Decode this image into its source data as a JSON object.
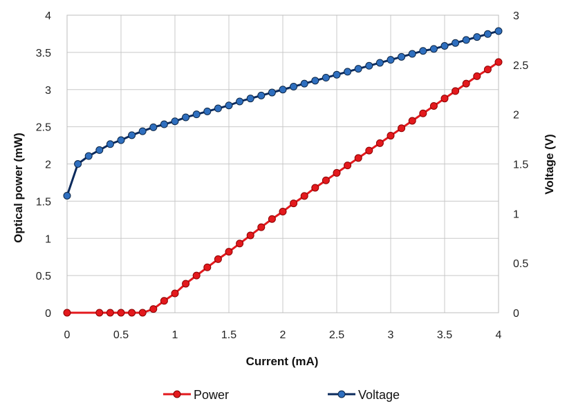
{
  "chart_data": {
    "type": "line",
    "title": "",
    "xlabel": "Current (mA)",
    "ylabel_left": "Optical power (mW)",
    "ylabel_right": "Voltage (V)",
    "xlim": [
      0,
      4
    ],
    "ylim_left": [
      0,
      4
    ],
    "ylim_right": [
      0,
      3
    ],
    "xticks": [
      "0",
      "0.5",
      "1",
      "1.5",
      "2",
      "2.5",
      "3",
      "3.5",
      "4"
    ],
    "yticks_left": [
      "0",
      "0.5",
      "1",
      "1.5",
      "2",
      "2.5",
      "3",
      "3.5",
      "4"
    ],
    "yticks_right": [
      "0",
      "0.5",
      "1",
      "1.5",
      "2",
      "2.5",
      "3"
    ],
    "grid": true,
    "legend_position": "bottom",
    "series": [
      {
        "name": "Power",
        "axis": "left",
        "color": "#e3191d",
        "x": [
          0,
          0.3,
          0.4,
          0.5,
          0.6,
          0.7,
          0.8,
          0.9,
          1.0,
          1.1,
          1.2,
          1.3,
          1.4,
          1.5,
          1.6,
          1.7,
          1.8,
          1.9,
          2.0,
          2.1,
          2.2,
          2.3,
          2.4,
          2.5,
          2.6,
          2.7,
          2.8,
          2.9,
          3.0,
          3.1,
          3.2,
          3.3,
          3.4,
          3.5,
          3.6,
          3.7,
          3.8,
          3.9,
          4.0
        ],
        "values": [
          0,
          0,
          0,
          0,
          0,
          0,
          0.05,
          0.16,
          0.26,
          0.39,
          0.5,
          0.61,
          0.72,
          0.82,
          0.93,
          1.04,
          1.15,
          1.26,
          1.36,
          1.47,
          1.57,
          1.68,
          1.78,
          1.88,
          1.98,
          2.08,
          2.18,
          2.28,
          2.38,
          2.48,
          2.58,
          2.68,
          2.78,
          2.88,
          2.98,
          3.08,
          3.18,
          3.27,
          3.37
        ]
      },
      {
        "name": "Voltage",
        "axis": "right",
        "color": "#1f4e8c",
        "x": [
          0,
          0.1,
          0.2,
          0.3,
          0.4,
          0.5,
          0.6,
          0.7,
          0.8,
          0.9,
          1.0,
          1.1,
          1.2,
          1.3,
          1.4,
          1.5,
          1.6,
          1.7,
          1.8,
          1.9,
          2.0,
          2.1,
          2.2,
          2.3,
          2.4,
          2.5,
          2.6,
          2.7,
          2.8,
          2.9,
          3.0,
          3.1,
          3.2,
          3.3,
          3.4,
          3.5,
          3.6,
          3.7,
          3.8,
          3.9,
          4.0
        ],
        "values": [
          1.18,
          1.5,
          1.58,
          1.64,
          1.7,
          1.74,
          1.79,
          1.83,
          1.87,
          1.9,
          1.93,
          1.97,
          2.0,
          2.03,
          2.06,
          2.09,
          2.13,
          2.16,
          2.19,
          2.22,
          2.25,
          2.28,
          2.31,
          2.34,
          2.37,
          2.4,
          2.43,
          2.46,
          2.49,
          2.52,
          2.55,
          2.58,
          2.61,
          2.64,
          2.66,
          2.69,
          2.72,
          2.75,
          2.78,
          2.81,
          2.84
        ]
      }
    ]
  }
}
